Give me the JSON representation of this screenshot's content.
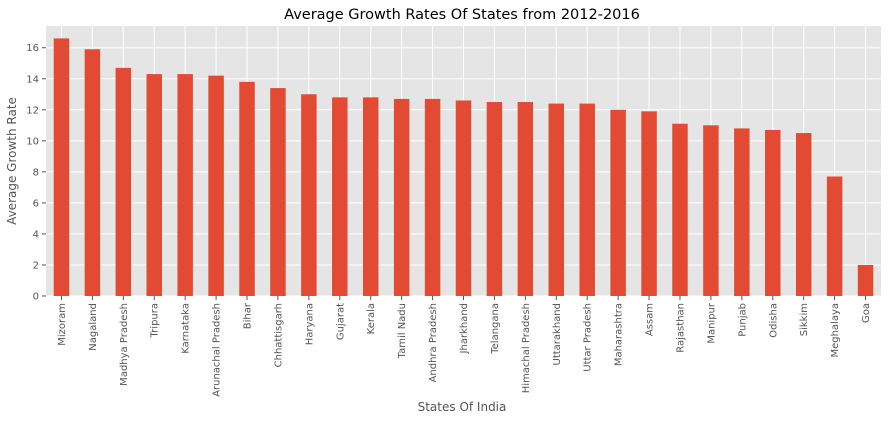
{
  "chart_data": {
    "type": "bar",
    "title": "Average Growth Rates Of States from 2012-2016",
    "xlabel": "States Of India",
    "ylabel": "Average Growth Rate",
    "categories": [
      "Mizoram",
      "Nagaland",
      "Madhya Pradesh",
      "Tripura",
      "Karnataka",
      "Arunachal Pradesh",
      "Bihar",
      "Chhattisgarh",
      "Haryana",
      "Gujarat",
      "Kerala",
      "Tamil Nadu",
      "Andhra Pradesh",
      "Jharkhand",
      "Telangana",
      "Himachal Pradesh",
      "Uttarakhand",
      "Uttar Pradesh",
      "Maharashtra",
      "Assam",
      "Rajasthan",
      "Manipur",
      "Punjab",
      "Odisha",
      "Sikkim",
      "Meghalaya",
      "Goa"
    ],
    "values": [
      16.6,
      15.9,
      14.7,
      14.3,
      14.3,
      14.2,
      13.8,
      13.4,
      13.0,
      12.8,
      12.8,
      12.7,
      12.7,
      12.6,
      12.5,
      12.5,
      12.4,
      12.4,
      12.0,
      11.9,
      11.1,
      11.0,
      10.8,
      10.7,
      10.5,
      7.7,
      2.0
    ],
    "ylim": [
      0,
      17.4
    ],
    "yticks": [
      0,
      2,
      4,
      6,
      8,
      10,
      12,
      14,
      16
    ],
    "grid": true,
    "legend": "none",
    "colors": {
      "bar": "#E24A33",
      "background": "#E5E5E5",
      "grid": "#FFFFFF",
      "text": "#555555"
    }
  }
}
